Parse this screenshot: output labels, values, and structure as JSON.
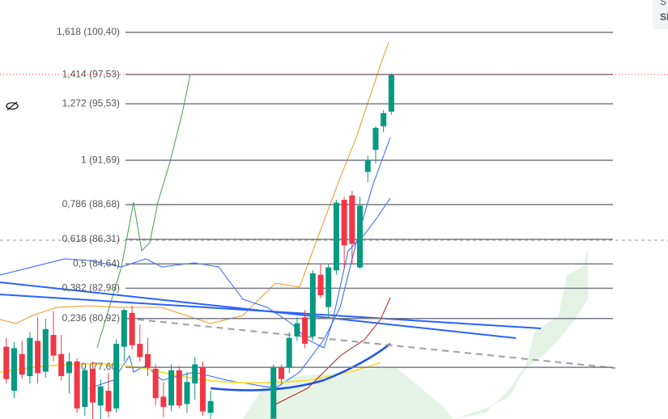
{
  "chart_data": {
    "type": "candlestick",
    "ylim": [
      74.08,
      102.6
    ],
    "xlim": [
      -0.8,
      84.2
    ],
    "legend": [
      {
        "name": "S",
        "color": "#f7931a"
      },
      {
        "name": "SM",
        "color": "#4cd137"
      }
    ],
    "up_color": "#089981",
    "down_color": "#f23645",
    "current_price": 97.53,
    "fib_levels": [
      {
        "value": 100.4,
        "label": "1,618 (100,40)"
      },
      {
        "value": 97.53,
        "label": "1,414 (97,53)"
      },
      {
        "value": 95.53,
        "label": "1,272 (95,53)"
      },
      {
        "value": 91.69,
        "label": "1 (91,69)"
      },
      {
        "value": 88.68,
        "label": "0,786 (88,68)"
      },
      {
        "value": 86.31,
        "label": "0,618 (86,31)"
      },
      {
        "value": 84.64,
        "label": "0,5 (84,64)"
      },
      {
        "value": 82.98,
        "label": "0,382 (82,98)"
      },
      {
        "value": 80.92,
        "label": "0,236 (80,92)"
      },
      {
        "value": 77.6,
        "label": "0 (77,60)"
      }
    ],
    "candles": {
      "x": [
        0,
        1,
        2,
        3,
        4,
        5,
        6,
        7,
        8,
        9,
        10,
        11,
        12,
        13,
        14,
        15,
        16,
        17,
        18,
        19,
        20,
        21,
        22,
        23,
        24,
        25,
        26,
        34,
        35,
        36,
        37,
        38,
        39,
        40,
        41,
        42,
        43,
        44,
        45,
        46,
        47,
        48,
        49
      ],
      "open": [
        79.0,
        76.0,
        78.5,
        77.0,
        79.4,
        77.3,
        79.8,
        78.5,
        77.2,
        78.0,
        74.9,
        77.5,
        75.0,
        76.0,
        74.8,
        79.0,
        81.3,
        79.2,
        78.5,
        77.5,
        75.6,
        75.0,
        77.4,
        75.1,
        76.5,
        77.6,
        74.5,
        74.1,
        77.6,
        77.6,
        79.7,
        81.0,
        79.7,
        83.9,
        81.7,
        84.2,
        89.0,
        89.3,
        84.4,
        90.9,
        92.4,
        94.0,
        95.0
      ],
      "high": [
        79.6,
        79.3,
        79.4,
        80.0,
        81.0,
        80.9,
        81.4,
        79.8,
        78.6,
        78.2,
        77.6,
        78.0,
        76.8,
        77.2,
        79.5,
        81.6,
        81.8,
        80.5,
        79.6,
        77.8,
        76.6,
        77.8,
        77.7,
        77.3,
        78.3,
        78.0,
        76.0,
        77.8,
        77.8,
        80.0,
        81.0,
        81.5,
        84.2,
        84.6,
        84.6,
        89.0,
        89.2,
        89.6,
        89.2,
        92.0,
        94.0,
        95.1,
        97.6
      ],
      "low": [
        76.5,
        75.5,
        76.8,
        76.5,
        76.5,
        76.9,
        78.0,
        76.7,
        75.8,
        74.5,
        74.3,
        74.0,
        74.0,
        74.2,
        74.5,
        78.0,
        78.8,
        78.0,
        77.0,
        75.0,
        74.2,
        74.6,
        74.8,
        74.5,
        75.4,
        74.3,
        74.1,
        74.1,
        76.5,
        77.2,
        79.4,
        78.9,
        79.4,
        82.3,
        81.0,
        83.9,
        84.4,
        84.6,
        84.3,
        90.2,
        91.5,
        93.6,
        94.8
      ],
      "close": [
        76.8,
        78.9,
        77.1,
        79.6,
        77.2,
        80.2,
        78.4,
        77.0,
        78.0,
        74.8,
        77.4,
        75.2,
        76.3,
        74.6,
        79.2,
        81.5,
        79.1,
        78.3,
        77.6,
        75.5,
        74.9,
        77.4,
        75.0,
        76.6,
        77.8,
        74.6,
        75.3,
        77.6,
        76.8,
        79.6,
        80.6,
        79.2,
        84.0,
        82.5,
        84.4,
        88.8,
        85.9,
        86.0,
        88.6,
        91.7,
        93.9,
        94.9,
        97.5
      ]
    }
  }
}
